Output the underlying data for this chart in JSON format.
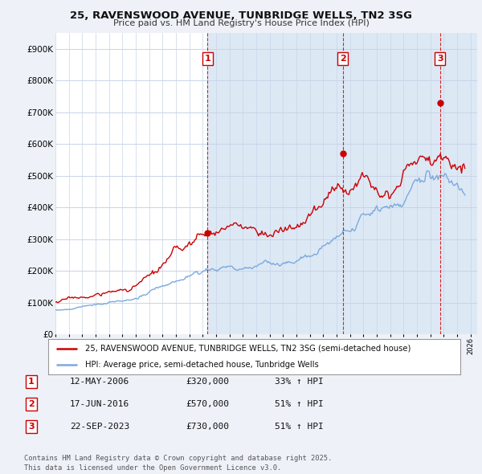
{
  "title": "25, RAVENSWOOD AVENUE, TUNBRIDGE WELLS, TN2 3SG",
  "subtitle": "Price paid vs. HM Land Registry's House Price Index (HPI)",
  "background_color": "#eef2f8",
  "plot_bg_color": "#ffffff",
  "grid_color": "#c8d4e8",
  "red_color": "#cc0000",
  "blue_color": "#7aaadd",
  "shade_color": "#dde8f5",
  "ylim": [
    0,
    950000
  ],
  "yticks": [
    0,
    100000,
    200000,
    300000,
    400000,
    500000,
    600000,
    700000,
    800000,
    900000
  ],
  "ytick_labels": [
    "£0",
    "£100K",
    "£200K",
    "£300K",
    "£400K",
    "£500K",
    "£600K",
    "£700K",
    "£800K",
    "£900K"
  ],
  "xlim": [
    1995,
    2026.5
  ],
  "sales": [
    {
      "date_num": 2006.37,
      "price": 320000,
      "label": "1"
    },
    {
      "date_num": 2016.46,
      "price": 570000,
      "label": "2"
    },
    {
      "date_num": 2023.72,
      "price": 730000,
      "label": "3"
    }
  ],
  "legend_entries": [
    "25, RAVENSWOOD AVENUE, TUNBRIDGE WELLS, TN2 3SG (semi-detached house)",
    "HPI: Average price, semi-detached house, Tunbridge Wells"
  ],
  "table": [
    {
      "num": "1",
      "date": "12-MAY-2006",
      "price": "£320,000",
      "hpi": "33% ↑ HPI"
    },
    {
      "num": "2",
      "date": "17-JUN-2016",
      "price": "£570,000",
      "hpi": "51% ↑ HPI"
    },
    {
      "num": "3",
      "date": "22-SEP-2023",
      "price": "£730,000",
      "hpi": "51% ↑ HPI"
    }
  ],
  "footer": "Contains HM Land Registry data © Crown copyright and database right 2025.\nThis data is licensed under the Open Government Licence v3.0."
}
